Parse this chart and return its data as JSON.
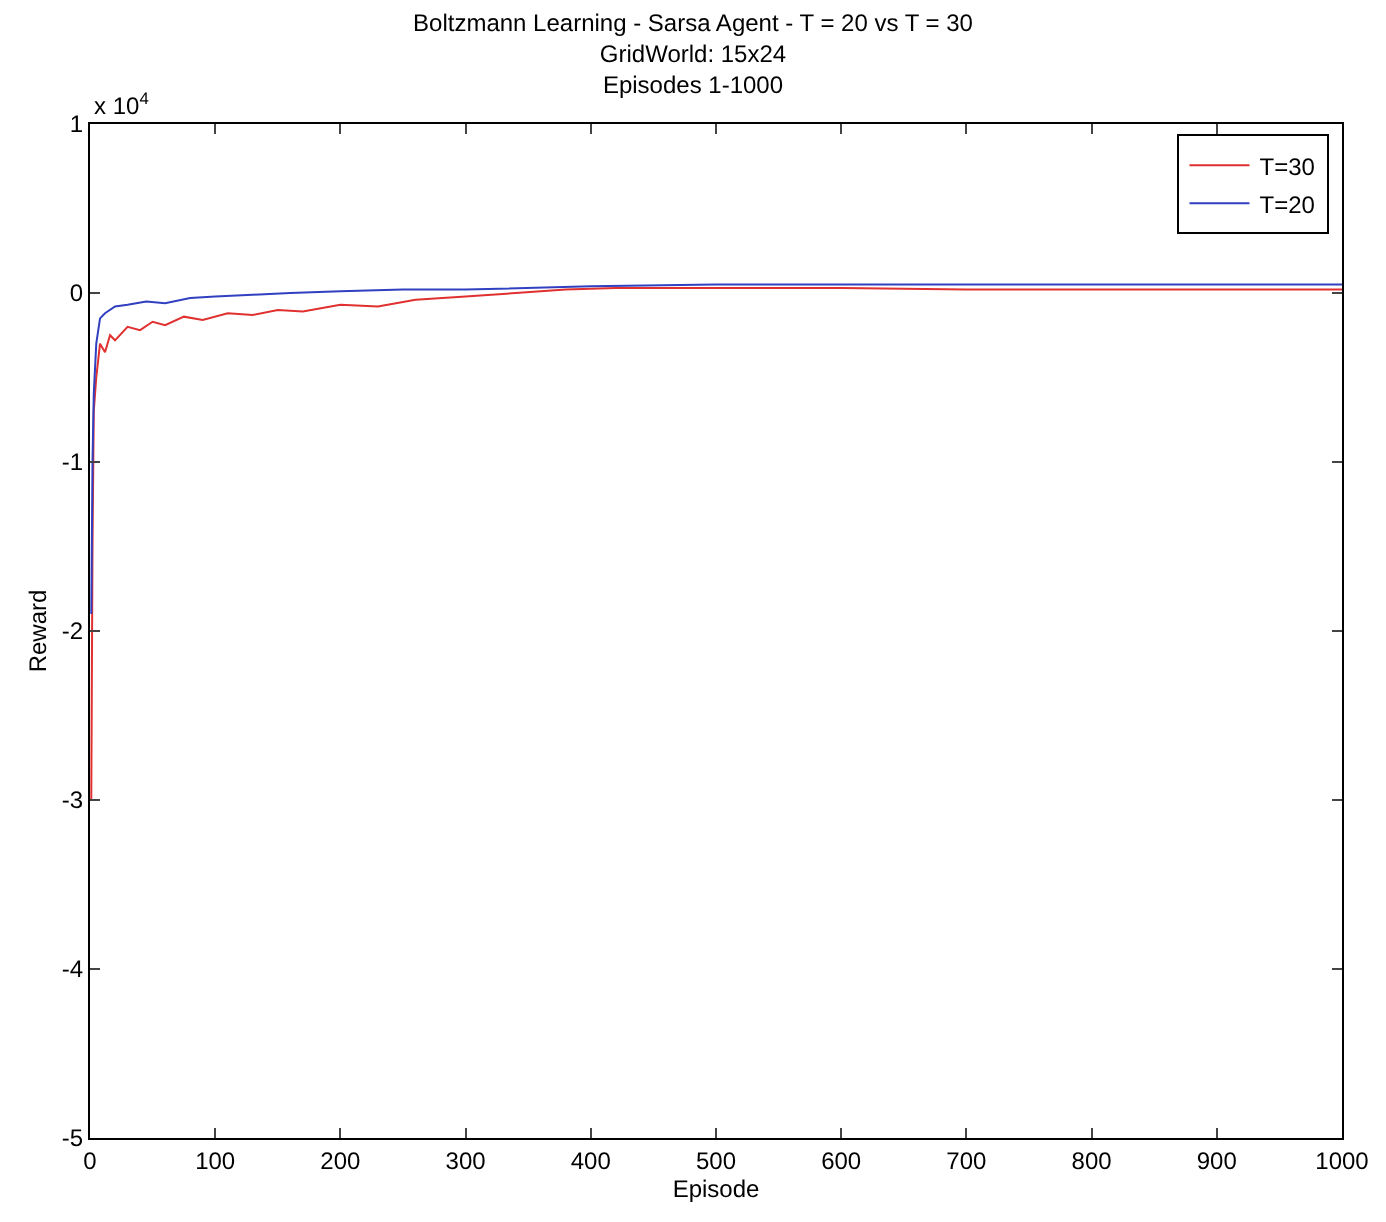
{
  "chart_data": {
    "type": "line",
    "title": "Boltzmann Learning - Sarsa Agent - T = 20 vs T = 30\nGridWorld: 15x24\nEpisodes 1-1000",
    "xlabel": "Episode",
    "ylabel": "Reward",
    "annotations": [
      "x 10$^{4}$"
    ],
    "xlim": [
      0,
      1000
    ],
    "xticks": [
      0,
      100,
      200,
      300,
      400,
      500,
      600,
      700,
      800,
      900,
      1000
    ],
    "ylim": [
      -5,
      1
    ],
    "yticks": [
      -5,
      -4,
      -3,
      -2,
      -1,
      0,
      1
    ],
    "grid": false,
    "legend": "top right",
    "line_style": "solid",
    "marker": "none",
    "series": [
      {
        "name": "T=30",
        "color": "#e03030",
        "x": [
          1,
          2,
          3,
          5,
          8,
          12,
          16,
          20,
          30,
          40,
          50,
          60,
          75,
          90,
          110,
          130,
          150,
          170,
          200,
          230,
          260,
          300,
          340,
          380,
          420,
          500,
          600,
          700,
          800,
          900,
          1000
        ],
        "values": [
          -3.0,
          -1.5,
          -0.7,
          -0.5,
          -0.3,
          -0.35,
          -0.25,
          -0.28,
          -0.2,
          -0.22,
          -0.17,
          -0.19,
          -0.14,
          -0.16,
          -0.12,
          -0.13,
          -0.1,
          -0.11,
          -0.07,
          -0.08,
          -0.04,
          -0.02,
          0.0,
          0.02,
          0.03,
          0.03,
          0.03,
          0.02,
          0.02,
          0.02,
          0.02
        ]
      },
      {
        "name": "T=20",
        "color": "#3040c0",
        "x": [
          1,
          2,
          3,
          5,
          8,
          12,
          20,
          30,
          45,
          60,
          80,
          100,
          130,
          160,
          200,
          250,
          300,
          400,
          500,
          700,
          1000
        ],
        "values": [
          -1.9,
          -1.0,
          -0.6,
          -0.3,
          -0.15,
          -0.12,
          -0.08,
          -0.07,
          -0.05,
          -0.06,
          -0.03,
          -0.02,
          -0.01,
          0.0,
          0.01,
          0.02,
          0.02,
          0.04,
          0.05,
          0.05,
          0.05
        ]
      }
    ]
  }
}
